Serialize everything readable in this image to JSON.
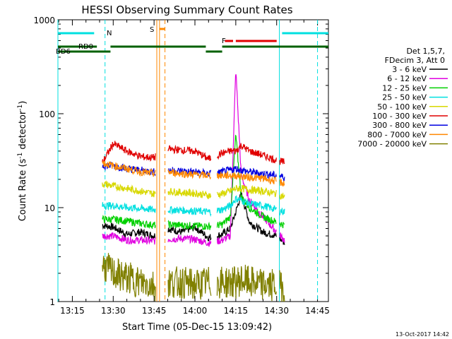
{
  "chart_data": {
    "type": "line",
    "title": "HESSI Observing Summary Count Rates",
    "xlabel": "Start Time (05-Dec-15 13:09:42)",
    "ylabel_main": "Count Rate (s",
    "ylabel_sup1": "-1",
    "ylabel_mid": " detector",
    "ylabel_sup2": "-1",
    "ylabel_end": ")",
    "ylabel": "Count Rate (s-1 detector-1)",
    "yscale": "log",
    "ylim": [
      1,
      1000
    ],
    "xlim": [
      "13:09:42",
      "14:49:00"
    ],
    "x_ticks": [
      "13:15",
      "13:30",
      "13:45",
      "14:00",
      "14:15",
      "14:30",
      "14:45"
    ],
    "y_ticks": [
      "1",
      "10",
      "100",
      "1000"
    ],
    "legend_placement": "right",
    "legend_header": [
      "Det 1,5,7,",
      "FDecim 3, Att 0"
    ],
    "series": [
      {
        "name": "3 - 6 keV",
        "color": "#000000",
        "x": [
          "13:26",
          "13:30",
          "13:35",
          "13:40",
          "13:45",
          "13:50",
          "13:55",
          "14:00",
          "14:05",
          "14:10",
          "14:13",
          "14:15",
          "14:17",
          "14:20",
          "14:25",
          "14:30",
          "14:33"
        ],
        "values": [
          6.5,
          6.2,
          5.2,
          5.5,
          5.0,
          6.0,
          5.5,
          6.2,
          4.8,
          5.2,
          6.0,
          9.0,
          14.0,
          7.0,
          5.5,
          5.0,
          4.2
        ]
      },
      {
        "name": "6 - 12 keV",
        "color": "#e000e0",
        "x": [
          "13:26",
          "13:30",
          "13:35",
          "13:40",
          "13:45",
          "13:50",
          "13:55",
          "14:00",
          "14:05",
          "14:10",
          "14:13",
          "14:15",
          "14:17",
          "14:20",
          "14:25",
          "14:30",
          "14:33"
        ],
        "values": [
          5.0,
          5.0,
          4.5,
          4.5,
          4.4,
          4.6,
          4.7,
          4.6,
          4.2,
          4.5,
          5.0,
          300,
          22,
          12,
          8,
          5.5,
          4.5
        ]
      },
      {
        "name": "12 - 25 keV",
        "color": "#00d000",
        "x": [
          "13:26",
          "13:30",
          "13:35",
          "13:40",
          "13:45",
          "13:50",
          "13:55",
          "14:00",
          "14:05",
          "14:10",
          "14:13",
          "14:15",
          "14:17",
          "14:20",
          "14:25",
          "14:30",
          "14:33"
        ],
        "values": [
          7.5,
          7.5,
          7.2,
          6.8,
          6.5,
          6.6,
          6.5,
          6.4,
          6.3,
          6.6,
          8.0,
          60,
          13,
          10,
          8,
          7,
          6.5
        ]
      },
      {
        "name": "25 - 50 keV",
        "color": "#00e0e0",
        "x": [
          "13:26",
          "13:30",
          "13:35",
          "13:40",
          "13:45",
          "13:50",
          "13:55",
          "14:00",
          "14:05",
          "14:10",
          "14:13",
          "14:15",
          "14:17",
          "14:20",
          "14:25",
          "14:30",
          "14:33"
        ],
        "values": [
          10.5,
          10.5,
          10.0,
          9.8,
          9.5,
          9.5,
          9.4,
          9.2,
          9.0,
          9.5,
          10.5,
          12.5,
          12.0,
          11.0,
          10.5,
          9.5,
          9.0
        ]
      },
      {
        "name": "50 - 100 keV",
        "color": "#d8d800",
        "x": [
          "13:26",
          "13:30",
          "13:35",
          "13:40",
          "13:45",
          "13:50",
          "13:55",
          "14:00",
          "14:05",
          "14:10",
          "14:13",
          "14:15",
          "14:17",
          "14:20",
          "14:25",
          "14:30",
          "14:33"
        ],
        "values": [
          18,
          17,
          16,
          15,
          14,
          15,
          14.5,
          14.2,
          13.5,
          14,
          15,
          16,
          16,
          15.5,
          15,
          14,
          13
        ]
      },
      {
        "name": "100 - 300 keV",
        "color": "#e00000",
        "x": [
          "13:26",
          "13:30",
          "13:35",
          "13:40",
          "13:45",
          "13:50",
          "13:55",
          "14:00",
          "14:05",
          "14:10",
          "14:13",
          "14:15",
          "14:17",
          "14:20",
          "14:25",
          "14:30",
          "14:33"
        ],
        "values": [
          30,
          48,
          40,
          35,
          34,
          42,
          41,
          40,
          33,
          38,
          40,
          40,
          46,
          40,
          36,
          32,
          30
        ]
      },
      {
        "name": "300 - 800 keV",
        "color": "#0000e0",
        "x": [
          "13:26",
          "13:30",
          "13:35",
          "13:40",
          "13:45",
          "13:50",
          "13:55",
          "14:00",
          "14:05",
          "14:10",
          "14:13",
          "14:15",
          "14:17",
          "14:20",
          "14:25",
          "14:30",
          "14:33"
        ],
        "values": [
          28,
          28,
          26,
          25,
          24,
          25,
          24.5,
          24,
          23,
          24,
          25,
          26,
          25,
          24,
          23,
          22,
          21
        ]
      },
      {
        "name": "800 - 7000 keV",
        "color": "#ff8800",
        "x": [
          "13:26",
          "13:30",
          "13:35",
          "13:40",
          "13:45",
          "13:50",
          "13:55",
          "14:00",
          "14:05",
          "14:10",
          "14:13",
          "14:15",
          "14:17",
          "14:20",
          "14:25",
          "14:30",
          "14:33"
        ],
        "values": [
          30,
          28,
          26,
          24,
          23,
          24,
          23,
          22.5,
          22,
          22,
          22,
          22,
          21.5,
          21,
          20.5,
          19,
          18
        ]
      },
      {
        "name": "7000 - 20000 keV",
        "color": "#808000",
        "x": [
          "13:26",
          "13:30",
          "13:35",
          "13:40",
          "13:45",
          "13:50",
          "13:55",
          "14:00",
          "14:05",
          "14:10",
          "14:13",
          "14:15",
          "14:17",
          "14:20",
          "14:25",
          "14:30",
          "14:33"
        ],
        "values": [
          2.5,
          2.0,
          1.8,
          1.6,
          1.5,
          1.6,
          1.6,
          1.5,
          1.6,
          1.6,
          1.6,
          1.6,
          1.7,
          1.6,
          1.5,
          1.5,
          1.4
        ]
      }
    ],
    "flag_bars": [
      {
        "label": "N",
        "color": "#00e0e0",
        "segments": [
          [
            "13:09:42",
            "13:23"
          ],
          [
            "14:32",
            "14:49"
          ]
        ]
      },
      {
        "label": "RD0",
        "color": "#006000",
        "segments": [
          [
            "13:09:42",
            "13:24"
          ],
          [
            "13:29",
            "14:04"
          ],
          [
            "14:10",
            "14:49"
          ]
        ]
      },
      {
        "label": "BD6",
        "color": "#006000",
        "segments": [
          [
            "13:09:42",
            "13:29"
          ],
          [
            "14:04",
            "14:10"
          ]
        ]
      },
      {
        "label": "S",
        "color": "#ff8800",
        "segments": [
          [
            "13:47",
            "13:49"
          ]
        ]
      },
      {
        "label": "F",
        "color": "#e00000",
        "segments": [
          [
            "14:11",
            "14:14"
          ],
          [
            "14:15",
            "14:30"
          ]
        ]
      }
    ],
    "vertical_lines": [
      {
        "color": "#00e0e0",
        "style": "solid",
        "x": "13:09:42"
      },
      {
        "color": "#00e0e0",
        "style": "dashed",
        "x": "13:27"
      },
      {
        "color": "#ff8800",
        "style": "solid",
        "x": "13:46"
      },
      {
        "color": "#ff8800",
        "style": "solid",
        "x": "13:47"
      },
      {
        "color": "#ff8800",
        "style": "dashed",
        "x": "13:49"
      },
      {
        "color": "#00e0e0",
        "style": "solid",
        "x": "14:31"
      },
      {
        "color": "#00e0e0",
        "style": "dashed",
        "x": "14:45"
      }
    ]
  },
  "footer_timestamp": "13-Oct-2017 14:42"
}
